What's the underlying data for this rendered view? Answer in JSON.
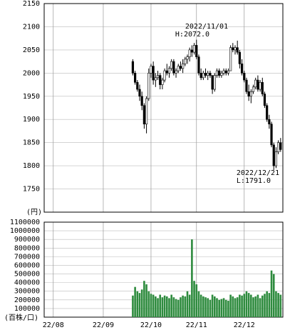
{
  "chart_data": [
    {
      "type": "candlestick",
      "y_label": "(円)",
      "ylim": [
        1700,
        2150
      ],
      "yticks": [
        1750,
        1800,
        1850,
        1900,
        1950,
        2000,
        2050,
        2100,
        2150
      ],
      "grid": true,
      "xlim": [
        -4,
        101
      ],
      "annotations": [
        "2022/11/01",
        "H:2072.0",
        "2022/12/21",
        "L:1791.0"
      ],
      "x": [
        35,
        36,
        37,
        38,
        39,
        40,
        41,
        42,
        43,
        44,
        45,
        46,
        47,
        48,
        49,
        50,
        51,
        52,
        53,
        54,
        55,
        56,
        57,
        58,
        59,
        60,
        61,
        62,
        63,
        64,
        65,
        66,
        67,
        68,
        69,
        70,
        71,
        72,
        73,
        74,
        75,
        76,
        77,
        78,
        79,
        80,
        81,
        82,
        83,
        84,
        85,
        86,
        87,
        88,
        89,
        90,
        91,
        92,
        93,
        94,
        95,
        96,
        97,
        98,
        99,
        100
      ],
      "open": [
        2025,
        2000,
        1980,
        1965,
        1950,
        1930,
        1890,
        1945,
        2000,
        2015,
        1985,
        1990,
        1995,
        1975,
        1985,
        2005,
        2000,
        2010,
        2025,
        2000,
        2005,
        2015,
        2010,
        2020,
        2030,
        2035,
        2050,
        2045,
        2060,
        2035,
        2000,
        1990,
        2000,
        1995,
        2000,
        1995,
        1965,
        1995,
        2005,
        1995,
        2000,
        2005,
        2000,
        2005,
        2055,
        2050,
        2055,
        2045,
        2020,
        2000,
        1985,
        1960,
        1950,
        1960,
        1970,
        1985,
        1965,
        1980,
        1955,
        1930,
        1900,
        1890,
        1845,
        1800,
        1830,
        1850
      ],
      "high": [
        2030,
        2005,
        1985,
        1975,
        1960,
        1935,
        1950,
        2010,
        2020,
        2025,
        2000,
        2005,
        2000,
        1990,
        2010,
        2020,
        2015,
        2030,
        2030,
        2010,
        2020,
        2025,
        2030,
        2035,
        2040,
        2055,
        2060,
        2065,
        2072,
        2040,
        2010,
        2005,
        2010,
        2005,
        2005,
        1995,
        2000,
        2010,
        2010,
        2005,
        2010,
        2010,
        2010,
        2060,
        2065,
        2060,
        2070,
        2050,
        2030,
        2005,
        1990,
        1975,
        1965,
        1975,
        1990,
        1995,
        1985,
        1990,
        1960,
        1935,
        1910,
        1895,
        1850,
        1840,
        1855,
        1860
      ],
      "low": [
        1995,
        1975,
        1960,
        1940,
        1920,
        1880,
        1870,
        1940,
        1990,
        1975,
        1970,
        1985,
        1965,
        1965,
        1980,
        1995,
        1990,
        2005,
        1995,
        1990,
        2000,
        2005,
        2000,
        2015,
        2020,
        2025,
        2035,
        2040,
        2030,
        1995,
        1985,
        1985,
        1990,
        1985,
        1990,
        1955,
        1960,
        1990,
        1990,
        1990,
        1995,
        1995,
        1995,
        2005,
        2045,
        2040,
        2040,
        2010,
        1995,
        1980,
        1955,
        1940,
        1935,
        1955,
        1965,
        1960,
        1960,
        1950,
        1925,
        1895,
        1880,
        1840,
        1791,
        1795,
        1825,
        1830
      ],
      "close": [
        2000,
        1980,
        1965,
        1950,
        1930,
        1890,
        1945,
        2000,
        2015,
        1985,
        1990,
        1995,
        1975,
        1985,
        2005,
        2000,
        2010,
        2025,
        2000,
        2005,
        2015,
        2010,
        2020,
        2030,
        2035,
        2050,
        2045,
        2060,
        2035,
        2000,
        1990,
        2000,
        1995,
        2000,
        1995,
        1965,
        1995,
        2005,
        1995,
        2000,
        2005,
        2000,
        2005,
        2055,
        2050,
        2055,
        2045,
        2020,
        2000,
        1985,
        1960,
        1950,
        1960,
        1970,
        1985,
        1965,
        1980,
        1955,
        1930,
        1900,
        1890,
        1845,
        1800,
        1830,
        1850,
        1835
      ]
    },
    {
      "type": "bar",
      "y_label": "(百株/口)",
      "color": "#2e8b3e",
      "ylim": [
        0,
        1100000
      ],
      "yticks": [
        100000,
        200000,
        300000,
        400000,
        500000,
        600000,
        700000,
        800000,
        900000,
        1000000,
        1100000
      ],
      "grid": true,
      "xlim": [
        -4,
        101
      ],
      "xticks": [
        {
          "value": 0,
          "label": "22/08"
        },
        {
          "value": 22,
          "label": "22/09"
        },
        {
          "value": 43,
          "label": "22/10"
        },
        {
          "value": 63,
          "label": "22/11"
        },
        {
          "value": 84,
          "label": "22/12"
        }
      ],
      "x": [
        35,
        36,
        37,
        38,
        39,
        40,
        41,
        42,
        43,
        44,
        45,
        46,
        47,
        48,
        49,
        50,
        51,
        52,
        53,
        54,
        55,
        56,
        57,
        58,
        59,
        60,
        61,
        62,
        63,
        64,
        65,
        66,
        67,
        68,
        69,
        70,
        71,
        72,
        73,
        74,
        75,
        76,
        77,
        78,
        79,
        80,
        81,
        82,
        83,
        84,
        85,
        86,
        87,
        88,
        89,
        90,
        91,
        92,
        93,
        94,
        95,
        96,
        97,
        98,
        99,
        100
      ],
      "values": [
        250000,
        350000,
        300000,
        280000,
        320000,
        420000,
        380000,
        300000,
        270000,
        260000,
        240000,
        220000,
        260000,
        230000,
        250000,
        240000,
        220000,
        260000,
        230000,
        210000,
        200000,
        230000,
        250000,
        240000,
        300000,
        260000,
        900000,
        420000,
        380000,
        300000,
        260000,
        240000,
        230000,
        220000,
        200000,
        260000,
        240000,
        220000,
        200000,
        210000,
        220000,
        200000,
        190000,
        260000,
        240000,
        220000,
        230000,
        260000,
        250000,
        270000,
        300000,
        280000,
        260000,
        230000,
        240000,
        260000,
        220000,
        250000,
        270000,
        300000,
        280000,
        540000,
        500000,
        300000,
        280000,
        260000
      ]
    }
  ]
}
